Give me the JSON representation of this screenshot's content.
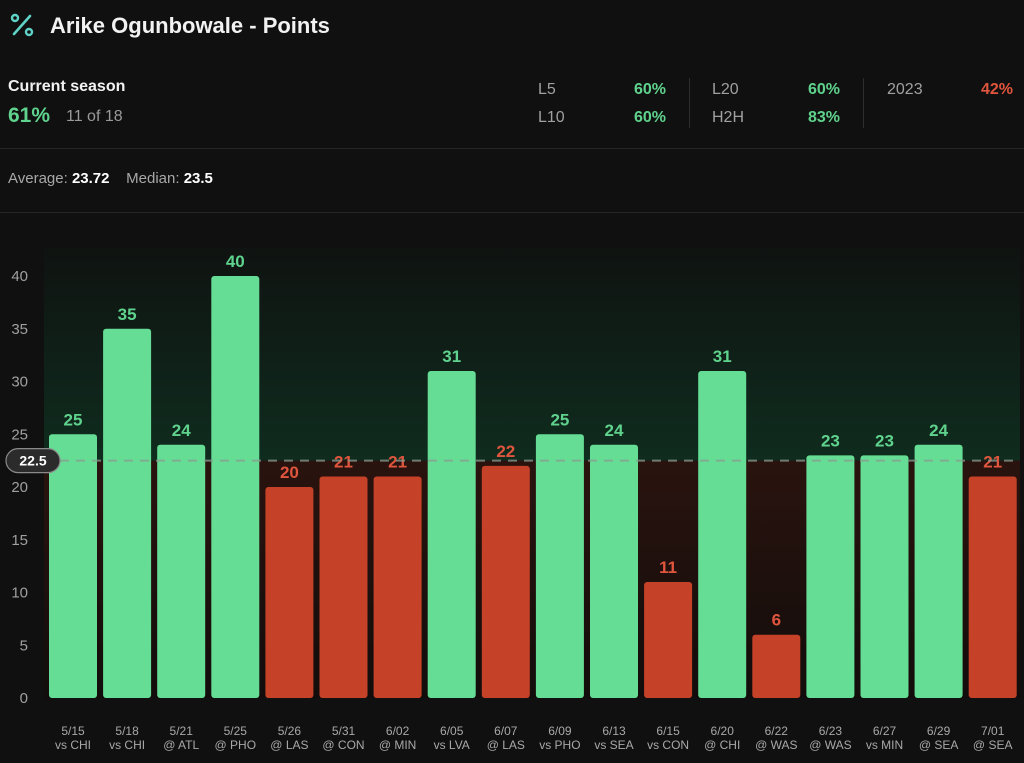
{
  "header": {
    "title": "Arike Ogunbowale - Points",
    "icon": "percent-icon"
  },
  "season": {
    "label": "Current season",
    "pct": "61%",
    "count": "11 of 18"
  },
  "stats": [
    {
      "label": "L5",
      "value": "60%",
      "color": "#5fd38d"
    },
    {
      "label": "L10",
      "value": "60%",
      "color": "#5fd38d"
    },
    {
      "label": "L20",
      "value": "60%",
      "color": "#5fd38d"
    },
    {
      "label": "H2H",
      "value": "83%",
      "color": "#5fd38d"
    },
    {
      "label": "2023",
      "value": "42%",
      "color": "#e0553d"
    }
  ],
  "summary": {
    "avg_label": "Average:",
    "avg_value": "23.72",
    "median_label": "Median:",
    "median_value": "23.5"
  },
  "colors": {
    "over": "#66dd95",
    "under": "#c54228",
    "over_text": "#5fd38d",
    "under_text": "#e0553d"
  },
  "chart_data": {
    "type": "bar",
    "line": 22.5,
    "line_label": "22.5",
    "ylim": [
      0,
      40
    ],
    "yticks": [
      0,
      5,
      10,
      15,
      20,
      25,
      30,
      35,
      40
    ],
    "categories": [
      [
        "5/15",
        "vs CHI"
      ],
      [
        "5/18",
        "vs CHI"
      ],
      [
        "5/21",
        "@ ATL"
      ],
      [
        "5/25",
        "@ PHO"
      ],
      [
        "5/26",
        "@ LAS"
      ],
      [
        "5/31",
        "@ CON"
      ],
      [
        "6/02",
        "@ MIN"
      ],
      [
        "6/05",
        "vs LVA"
      ],
      [
        "6/07",
        "@ LAS"
      ],
      [
        "6/09",
        "vs PHO"
      ],
      [
        "6/13",
        "vs SEA"
      ],
      [
        "6/15",
        "vs CON"
      ],
      [
        "6/20",
        "@ CHI"
      ],
      [
        "6/22",
        "@ WAS"
      ],
      [
        "6/23",
        "@ WAS"
      ],
      [
        "6/27",
        "vs MIN"
      ],
      [
        "6/29",
        "@ SEA"
      ],
      [
        "7/01",
        "@ SEA"
      ]
    ],
    "values": [
      25,
      35,
      24,
      40,
      20,
      21,
      21,
      31,
      22,
      25,
      24,
      11,
      31,
      6,
      23,
      23,
      24,
      21
    ]
  }
}
